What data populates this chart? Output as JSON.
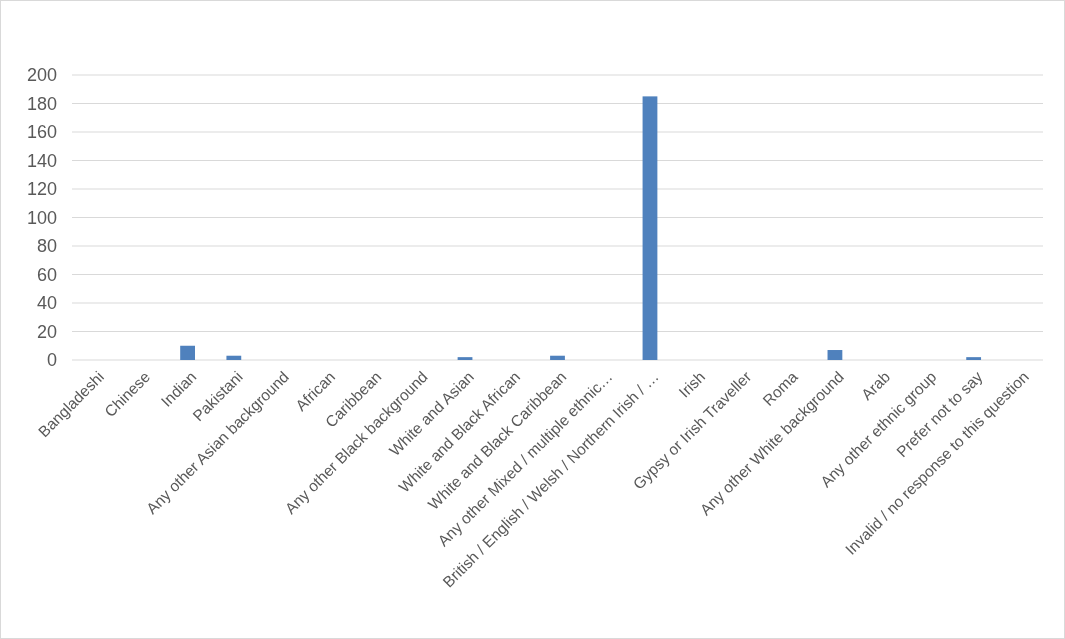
{
  "chart_data": {
    "type": "bar",
    "categories": [
      "Bangladeshi",
      "Chinese",
      "Indian",
      "Pakistani",
      "Any other Asian background",
      "African",
      "Caribbean",
      "Any other Black background",
      "White and Asian",
      "White and Black African",
      "White and Black Caribbean",
      "Any other Mixed / multiple ethnic…",
      "British / English / Welsh / Northern Irish / …",
      "Irish",
      "Gypsy or Irish Traveller",
      "Roma",
      "Any other White background",
      "Arab",
      "Any other ethnic group",
      "Prefer not to say",
      "Invalid / no response to this question"
    ],
    "values": [
      0,
      0,
      10,
      3,
      0,
      0,
      0,
      0,
      2,
      0,
      3,
      0,
      185,
      0,
      0,
      0,
      7,
      0,
      0,
      2,
      0
    ],
    "color": "#4f81bd",
    "ylim": [
      0,
      200
    ],
    "yticks": [
      0,
      20,
      40,
      60,
      80,
      100,
      120,
      140,
      160,
      180,
      200
    ],
    "grid": "y"
  }
}
